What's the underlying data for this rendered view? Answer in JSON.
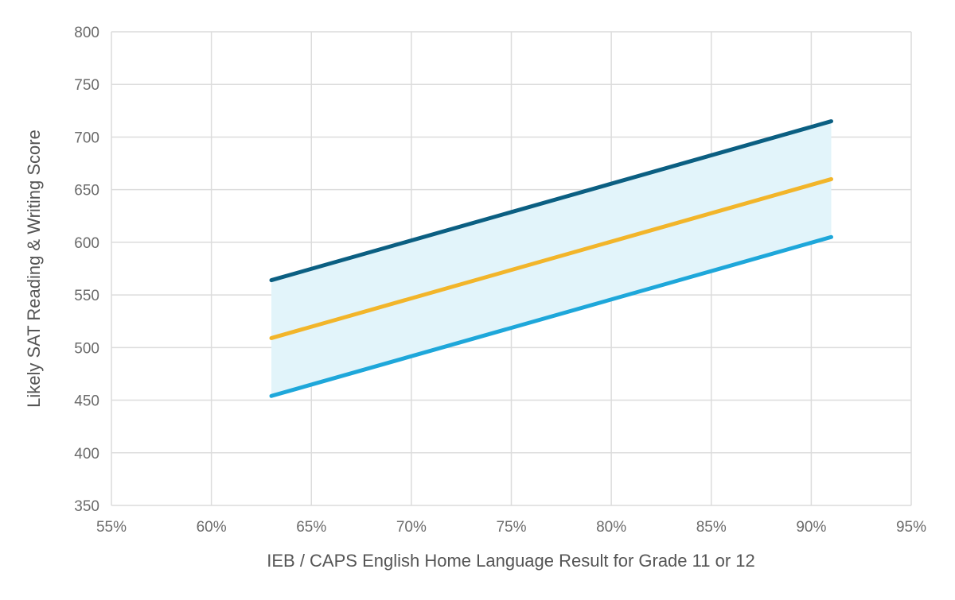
{
  "chart_data": {
    "type": "line",
    "title": "",
    "xlabel": "IEB / CAPS English Home Language Result for Grade 11 or 12",
    "ylabel": "Likely SAT Reading & Writing Score",
    "xlim": [
      55,
      95
    ],
    "ylim": [
      350,
      800
    ],
    "x_ticks": [
      55,
      60,
      65,
      70,
      75,
      80,
      85,
      90,
      95
    ],
    "x_tick_labels": [
      "55%",
      "60%",
      "65%",
      "70%",
      "75%",
      "80%",
      "85%",
      "90%",
      "95%"
    ],
    "y_ticks": [
      350,
      400,
      450,
      500,
      550,
      600,
      650,
      700,
      750,
      800
    ],
    "y_tick_labels": [
      "350",
      "400",
      "450",
      "500",
      "550",
      "600",
      "650",
      "700",
      "750",
      "800"
    ],
    "grid": true,
    "legend": "none",
    "band": {
      "fill": "#e2f4fa",
      "upper_series": 0,
      "lower_series": 2
    },
    "series": [
      {
        "color": "#0b5f82",
        "x": [
          63,
          91
        ],
        "values": [
          564,
          715
        ]
      },
      {
        "color": "#f2b52a",
        "x": [
          63,
          91
        ],
        "values": [
          509,
          660
        ]
      },
      {
        "color": "#1ea7da",
        "x": [
          63,
          91
        ],
        "values": [
          454,
          605
        ]
      }
    ]
  }
}
